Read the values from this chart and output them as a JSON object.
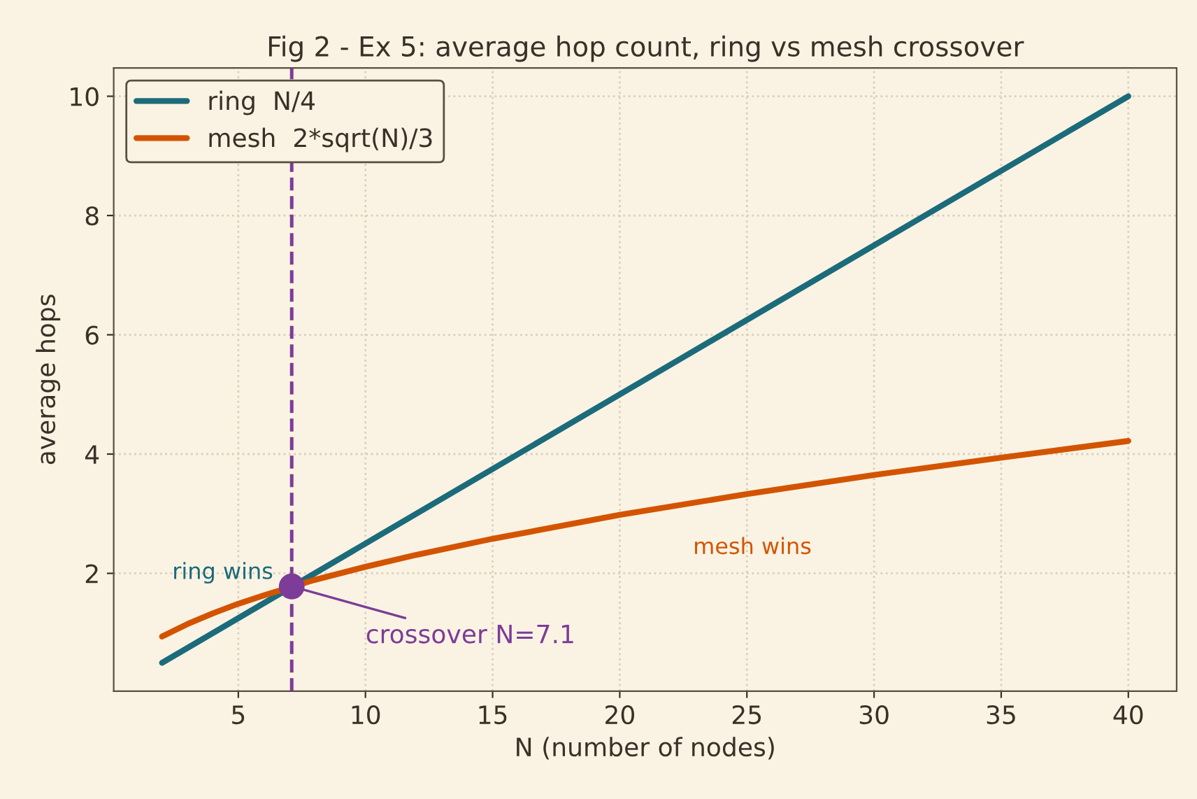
{
  "chart_data": {
    "type": "line",
    "title": "Fig 2 - Ex 5: average hop count, ring vs mesh crossover",
    "xlabel": "N (number of nodes)",
    "ylabel": "average hops",
    "series": [
      {
        "name": "ring  N/4",
        "color": "#1b6b7b",
        "x": [
          2,
          40
        ],
        "values": [
          0.5,
          10
        ]
      },
      {
        "name": "mesh  2*sqrt(N)/3",
        "color": "#d35400",
        "x": [
          2,
          3,
          4,
          5,
          6,
          8,
          10,
          12,
          15,
          20,
          25,
          30,
          35,
          40
        ],
        "values": [
          0.94,
          1.15,
          1.33,
          1.49,
          1.63,
          1.89,
          2.11,
          2.31,
          2.58,
          2.98,
          3.33,
          3.65,
          3.94,
          4.22
        ]
      },
      {
        "type": "scatter",
        "color": "#7d3c98",
        "x": [
          7.1
        ],
        "values": [
          1.78
        ],
        "marker": "circle"
      }
    ],
    "ref_lines": [
      {
        "axis": "x",
        "value": 7.1,
        "color": "#7d3c98",
        "line_style": "dashed"
      }
    ],
    "annotations": [
      {
        "text": "crossover N=7.1",
        "x": 7.1,
        "y": 1.78
      },
      "ring wins",
      "mesh wins"
    ],
    "xlim": [
      0.1,
      41.9
    ],
    "ylim": [
      0.025,
      10.475
    ],
    "xticks": [
      5,
      10,
      15,
      20,
      25,
      30,
      35,
      40
    ],
    "yticks": [
      2,
      4,
      6,
      8,
      10
    ],
    "grid": true,
    "legend": "top left",
    "line_style": "solid"
  }
}
